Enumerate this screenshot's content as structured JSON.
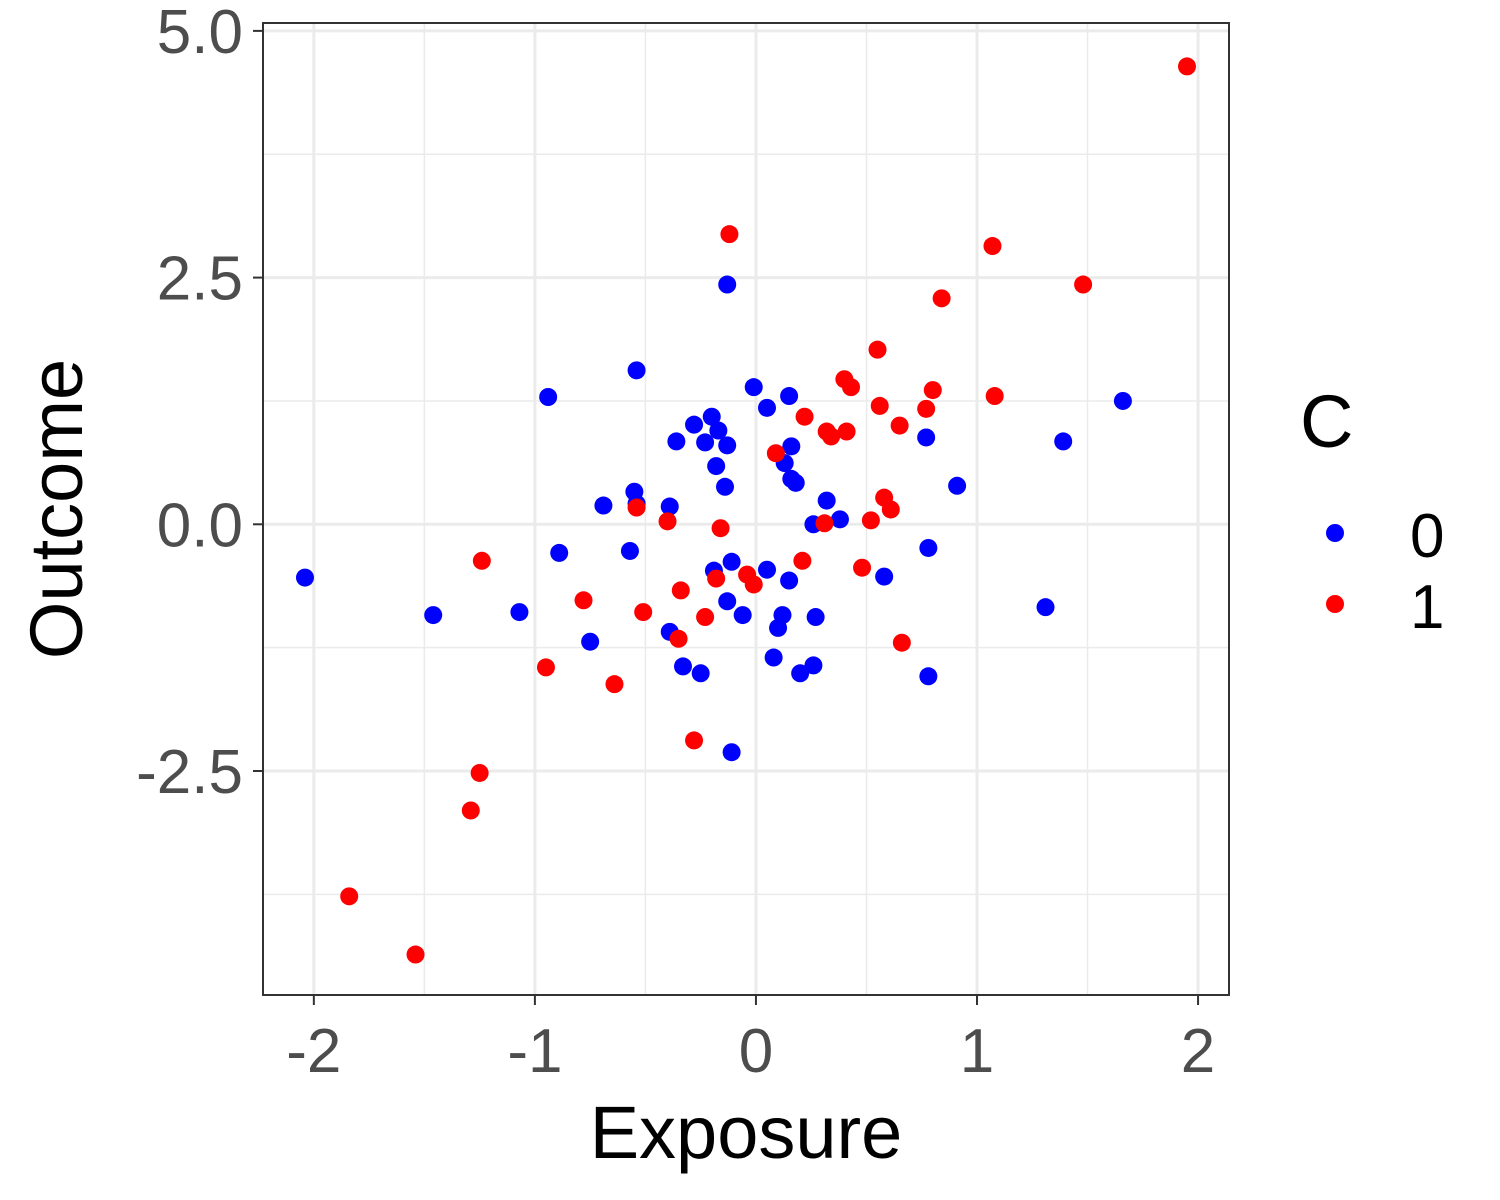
{
  "chart_data": {
    "type": "scatter",
    "xlabel": "Exposure",
    "ylabel": "Outcome",
    "xlim": [
      -2.23,
      2.14
    ],
    "ylim": [
      -4.77,
      5.08
    ],
    "x_ticks": [
      -2,
      -1,
      0,
      1,
      2
    ],
    "x_tick_labels": [
      "-2",
      "-1",
      "0",
      "1",
      "2"
    ],
    "y_ticks": [
      -2.5,
      0.0,
      2.5,
      5.0
    ],
    "y_tick_labels": [
      "-2.5",
      "0.0",
      "2.5",
      "5.0"
    ],
    "grid": true,
    "legend": {
      "title": "C",
      "position": "right",
      "entries": [
        {
          "label": "0",
          "color": "#0000ff"
        },
        {
          "label": "1",
          "color": "#ff0000"
        }
      ]
    },
    "series": [
      {
        "name": "0",
        "color": "#0000ff",
        "points": [
          [
            -2.04,
            -0.54
          ],
          [
            -1.46,
            -0.92
          ],
          [
            -1.07,
            -0.89
          ],
          [
            -0.94,
            1.29
          ],
          [
            -0.89,
            -0.29
          ],
          [
            -0.75,
            -1.19
          ],
          [
            -0.69,
            0.19
          ],
          [
            -0.57,
            -0.27
          ],
          [
            -0.55,
            0.33
          ],
          [
            -0.54,
            1.56
          ],
          [
            -0.54,
            0.21
          ],
          [
            -0.39,
            0.18
          ],
          [
            -0.39,
            -1.09
          ],
          [
            -0.36,
            0.84
          ],
          [
            -0.33,
            -1.44
          ],
          [
            -0.28,
            1.01
          ],
          [
            -0.25,
            -1.51
          ],
          [
            -0.23,
            0.83
          ],
          [
            -0.2,
            1.09
          ],
          [
            -0.19,
            -0.47
          ],
          [
            -0.18,
            0.59
          ],
          [
            -0.17,
            0.95
          ],
          [
            -0.14,
            0.38
          ],
          [
            -0.13,
            0.8
          ],
          [
            -0.13,
            -0.78
          ],
          [
            -0.13,
            2.43
          ],
          [
            -0.11,
            -0.38
          ],
          [
            -0.11,
            -2.31
          ],
          [
            -0.06,
            -0.92
          ],
          [
            -0.01,
            1.39
          ],
          [
            0.05,
            -0.46
          ],
          [
            0.05,
            1.18
          ],
          [
            0.08,
            -1.35
          ],
          [
            0.1,
            -1.05
          ],
          [
            0.12,
            -0.92
          ],
          [
            0.13,
            0.62
          ],
          [
            0.15,
            -0.57
          ],
          [
            0.15,
            1.3
          ],
          [
            0.16,
            0.79
          ],
          [
            0.16,
            0.46
          ],
          [
            0.18,
            0.42
          ],
          [
            0.2,
            -1.51
          ],
          [
            0.26,
            -1.43
          ],
          [
            0.26,
            0.0
          ],
          [
            0.27,
            -0.94
          ],
          [
            0.32,
            0.24
          ],
          [
            0.38,
            0.05
          ],
          [
            0.58,
            -0.53
          ],
          [
            0.77,
            0.88
          ],
          [
            0.78,
            -0.24
          ],
          [
            0.78,
            -1.54
          ],
          [
            0.91,
            0.39
          ],
          [
            1.31,
            -0.84
          ],
          [
            1.39,
            0.84
          ],
          [
            1.66,
            1.25
          ]
        ]
      },
      {
        "name": "1",
        "color": "#ff0000",
        "points": [
          [
            -1.84,
            -3.77
          ],
          [
            -1.54,
            -4.36
          ],
          [
            -1.29,
            -2.9
          ],
          [
            -1.25,
            -2.52
          ],
          [
            -1.24,
            -0.37
          ],
          [
            -0.95,
            -1.45
          ],
          [
            -0.78,
            -0.77
          ],
          [
            -0.64,
            -1.62
          ],
          [
            -0.54,
            0.17
          ],
          [
            -0.51,
            -0.89
          ],
          [
            -0.4,
            0.03
          ],
          [
            -0.35,
            -1.16
          ],
          [
            -0.34,
            -0.67
          ],
          [
            -0.28,
            -2.19
          ],
          [
            -0.23,
            -0.94
          ],
          [
            -0.18,
            -0.55
          ],
          [
            -0.16,
            -0.04
          ],
          [
            -0.12,
            2.94
          ],
          [
            -0.04,
            -0.51
          ],
          [
            -0.01,
            -0.61
          ],
          [
            0.09,
            0.72
          ],
          [
            0.21,
            -0.37
          ],
          [
            0.22,
            1.09
          ],
          [
            0.31,
            0.01
          ],
          [
            0.32,
            0.94
          ],
          [
            0.34,
            0.89
          ],
          [
            0.4,
            1.47
          ],
          [
            0.41,
            0.94
          ],
          [
            0.43,
            1.39
          ],
          [
            0.48,
            -0.44
          ],
          [
            0.52,
            0.04
          ],
          [
            0.55,
            1.77
          ],
          [
            0.56,
            1.2
          ],
          [
            0.58,
            0.27
          ],
          [
            0.61,
            0.15
          ],
          [
            0.65,
            1.0
          ],
          [
            0.66,
            -1.2
          ],
          [
            0.77,
            1.17
          ],
          [
            0.8,
            1.36
          ],
          [
            0.84,
            2.29
          ],
          [
            1.07,
            2.82
          ],
          [
            1.08,
            1.3
          ],
          [
            1.48,
            2.43
          ],
          [
            1.95,
            4.64
          ]
        ]
      }
    ]
  }
}
